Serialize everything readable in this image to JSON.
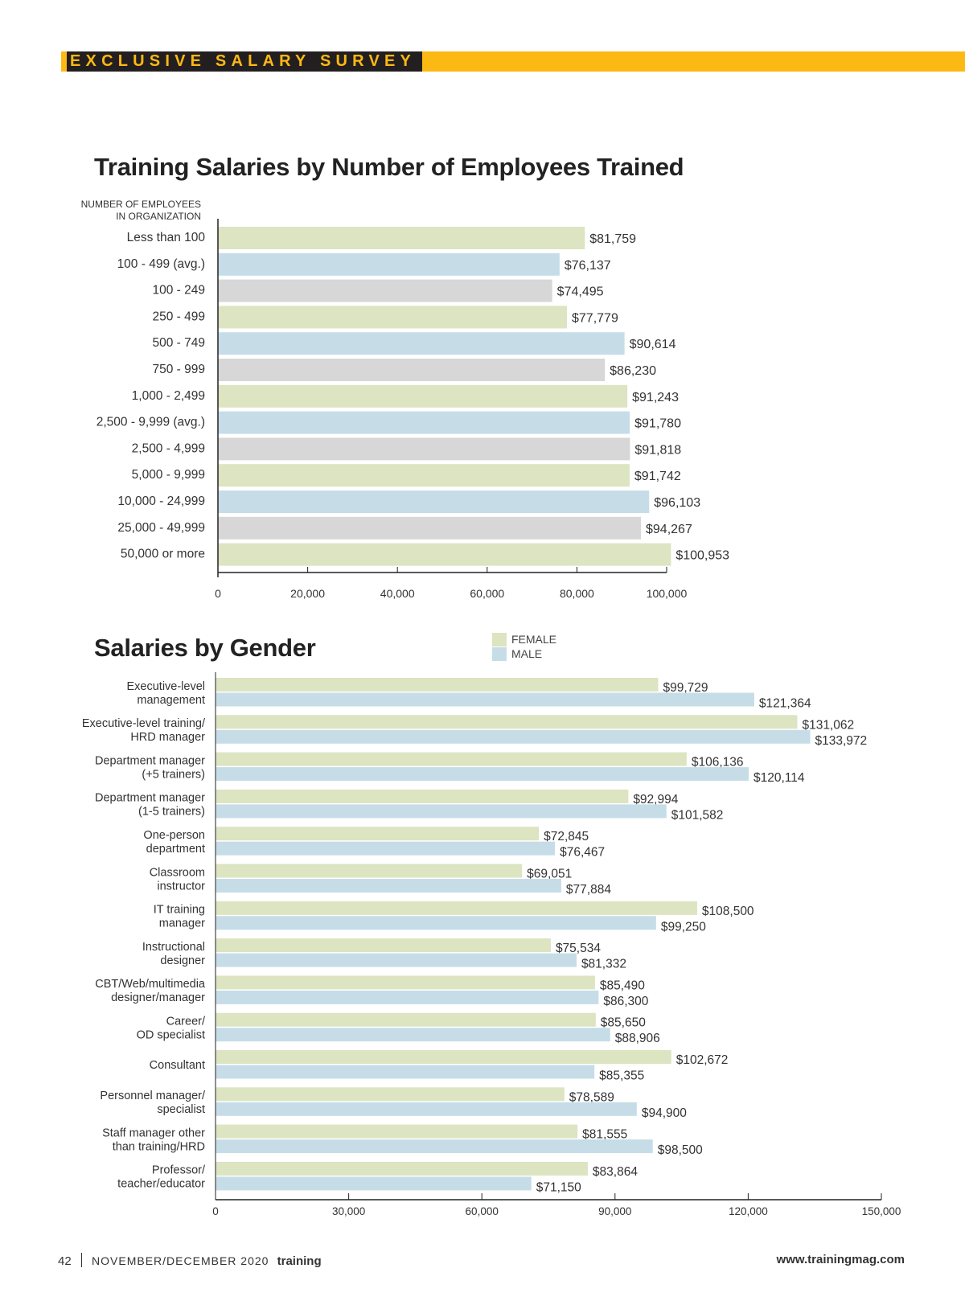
{
  "header": {
    "banner": "EXCLUSIVE SALARY SURVEY"
  },
  "colors": {
    "banner": "#fdb913",
    "banner_box": "#231f20",
    "green": "#dce4c1",
    "blue": "#c6dde8",
    "gray": "#d7d7d7"
  },
  "chart_data": [
    {
      "type": "bar",
      "orientation": "horizontal",
      "title": "Training Salaries by Number of Employees Trained",
      "ylabel": "NUMBER OF EMPLOYEES IN ORGANIZATION",
      "xlim": [
        0,
        100000
      ],
      "xticks": [
        "0",
        "20,000",
        "40,000",
        "60,000",
        "80,000",
        "100,000"
      ],
      "xtick_values": [
        0,
        20000,
        40000,
        60000,
        80000,
        100000
      ],
      "categories": [
        "Less than 100",
        "100 - 499 (avg.)",
        "100 - 249",
        "250 - 499",
        "500 - 749",
        "750 - 999",
        "1,000 - 2,499",
        "2,500 - 9,999 (avg.)",
        "2,500 - 4,999",
        "5,000 - 9,999",
        "10,000 - 24,999",
        "25,000 - 49,999",
        "50,000 or more"
      ],
      "values": [
        81759,
        76137,
        74495,
        77779,
        90614,
        86230,
        91243,
        91780,
        91818,
        91742,
        96103,
        94267,
        100953
      ],
      "labels": [
        "$81,759",
        "$76,137",
        "$74,495",
        "$77,779",
        "$90,614",
        "$86,230",
        "$91,243",
        "$91,780",
        "$91,818",
        "$91,742",
        "$96,103",
        "$94,267",
        "$100,953"
      ],
      "bar_colors": [
        "green",
        "blue",
        "gray",
        "green",
        "blue",
        "gray",
        "green",
        "blue",
        "gray",
        "green",
        "blue",
        "gray",
        "green"
      ]
    },
    {
      "type": "bar",
      "orientation": "horizontal",
      "title": "Salaries by Gender",
      "xlim": [
        0,
        150000
      ],
      "xticks": [
        "0",
        "30,000",
        "60,000",
        "90,000",
        "120,000",
        "150,000"
      ],
      "xtick_values": [
        0,
        30000,
        60000,
        90000,
        120000,
        150000
      ],
      "legend": [
        "FEMALE",
        "MALE"
      ],
      "legend_placement": "top-center",
      "categories": [
        [
          "Executive-level",
          "management"
        ],
        [
          "Executive-level training/",
          "HRD manager"
        ],
        [
          "Department manager",
          "(+5 trainers)"
        ],
        [
          "Department manager",
          "(1-5 trainers)"
        ],
        [
          "One-person",
          "department"
        ],
        [
          "Classroom",
          "instructor"
        ],
        [
          "IT training",
          "manager"
        ],
        [
          "Instructional",
          "designer"
        ],
        [
          "CBT/Web/multimedia",
          "designer/manager"
        ],
        [
          "Career/",
          "OD specialist"
        ],
        [
          "Consultant"
        ],
        [
          "Personnel manager/",
          "specialist"
        ],
        [
          "Staff manager other",
          "than training/HRD"
        ],
        [
          "Professor/",
          "teacher/educator"
        ]
      ],
      "series": [
        {
          "name": "FEMALE",
          "color": "green",
          "values": [
            99729,
            131062,
            106136,
            92994,
            72845,
            69051,
            108500,
            75534,
            85490,
            85650,
            102672,
            78589,
            81555,
            83864
          ],
          "labels": [
            "$99,729",
            "$131,062",
            "$106,136",
            "$92,994",
            "$72,845",
            "$69,051",
            "$108,500",
            "$75,534",
            "$85,490",
            "$85,650",
            "$102,672",
            "$78,589",
            "$81,555",
            "$83,864"
          ]
        },
        {
          "name": "MALE",
          "color": "blue",
          "values": [
            121364,
            133972,
            120114,
            101582,
            76467,
            77884,
            99250,
            81332,
            86300,
            88906,
            85355,
            94900,
            98500,
            71150
          ],
          "labels": [
            "$121,364",
            "$133,972",
            "$120,114",
            "$101,582",
            "$76,467",
            "$77,884",
            "$99,250",
            "$81,332",
            "$86,300",
            "$88,906",
            "$85,355",
            "$94,900",
            "$98,500",
            "$71,150"
          ]
        }
      ]
    }
  ],
  "footer": {
    "page": "42",
    "issue": "NOVEMBER/DECEMBER 2020",
    "magazine": "training",
    "website": "www.trainingmag.com"
  }
}
